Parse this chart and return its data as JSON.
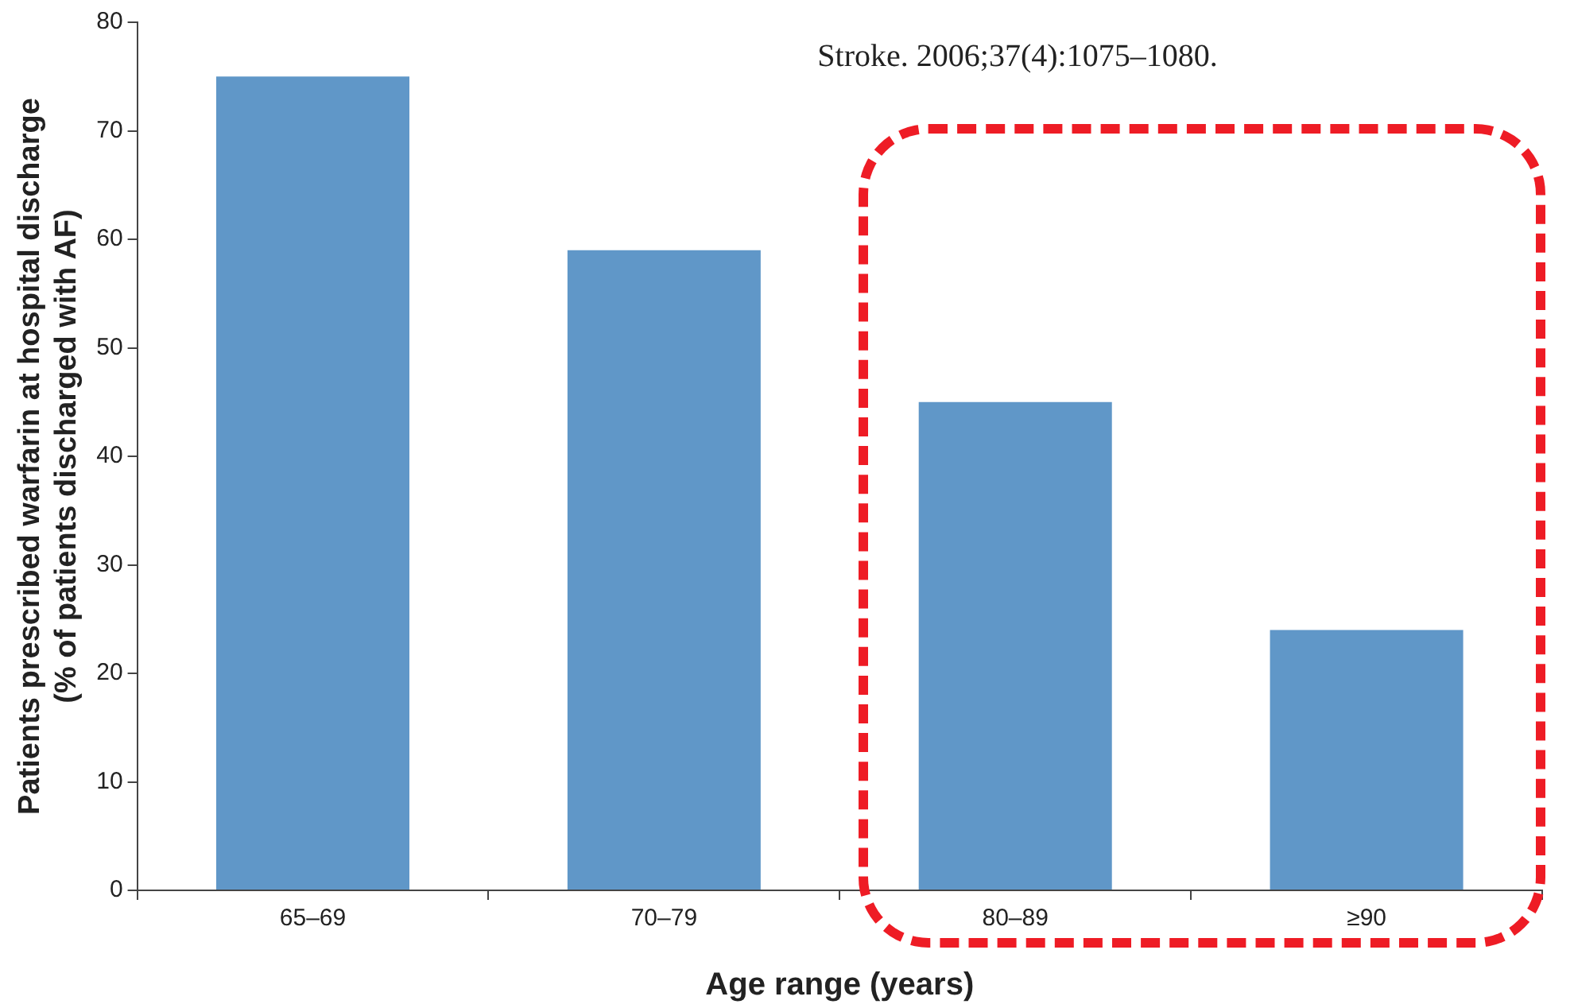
{
  "chart_data": {
    "type": "bar",
    "categories": [
      "65–69",
      "70–79",
      "80–89",
      "≥90"
    ],
    "values": [
      75,
      59,
      45,
      24
    ],
    "color": "#6097c8",
    "xlabel": "Age range (years)",
    "ylabel": "Patients prescribed warfarin at hospital discharge\n(% of patients discharged with AF)",
    "ylim": [
      0,
      80
    ],
    "yticks": [
      0,
      10,
      20,
      30,
      40,
      50,
      60,
      70,
      80
    ],
    "grid": false,
    "legend": false,
    "annotations": [
      "Stroke. 2006;37(4):1075–1080."
    ]
  }
}
